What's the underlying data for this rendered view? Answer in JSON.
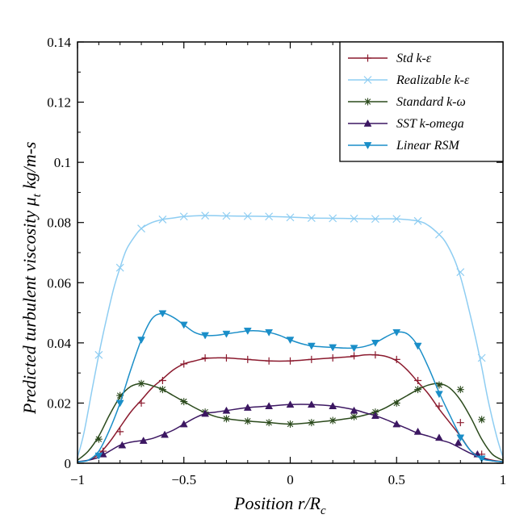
{
  "chart_data": {
    "type": "line",
    "title": "",
    "xlabel": "Position r/R",
    "xlabel_sub": "c",
    "ylabel": "Predicted turbulent viscosity μ",
    "ylabel_sub": "t",
    "ylabel_unit": "kg/m-s",
    "xlim": [
      -1,
      1
    ],
    "ylim": [
      0,
      0.14
    ],
    "x_ticks": [
      -1,
      -0.5,
      0,
      0.5,
      1
    ],
    "x_tick_labels": [
      "−1",
      "−0.5",
      "0",
      "0.5",
      "1"
    ],
    "y_ticks": [
      0,
      0.02,
      0.04,
      0.06,
      0.08,
      0.1,
      0.12,
      0.14
    ],
    "y_tick_labels": [
      "0",
      "0.02",
      "0.04",
      "0.06",
      "0.08",
      "0.1",
      "0.12",
      "0.14"
    ],
    "grid": false,
    "legend_position": "top-right",
    "series": [
      {
        "name": "Std k-ε",
        "color": "#8b1a2e",
        "marker": "plus",
        "line": {
          "x": [
            -1,
            -0.95,
            -0.9,
            -0.85,
            -0.8,
            -0.75,
            -0.7,
            -0.65,
            -0.6,
            -0.55,
            -0.5,
            -0.45,
            -0.4,
            -0.35,
            -0.3,
            -0.2,
            -0.1,
            0,
            0.1,
            0.2,
            0.3,
            0.35,
            0.4,
            0.45,
            0.5,
            0.55,
            0.6,
            0.65,
            0.7,
            0.75,
            0.8,
            0.85,
            0.9,
            0.95,
            1
          ],
          "y": [
            0.0005,
            0.001,
            0.003,
            0.007,
            0.012,
            0.017,
            0.021,
            0.025,
            0.028,
            0.031,
            0.033,
            0.034,
            0.0348,
            0.035,
            0.035,
            0.0345,
            0.034,
            0.034,
            0.0345,
            0.035,
            0.0355,
            0.036,
            0.036,
            0.0355,
            0.034,
            0.031,
            0.027,
            0.023,
            0.018,
            0.0135,
            0.009,
            0.004,
            0.002,
            0.001,
            0.0005
          ]
        },
        "markers": {
          "x": [
            -0.88,
            -0.8,
            -0.7,
            -0.6,
            -0.5,
            -0.4,
            -0.3,
            -0.2,
            -0.1,
            0,
            0.1,
            0.2,
            0.3,
            0.4,
            0.5,
            0.6,
            0.7,
            0.8,
            0.9
          ],
          "y": [
            0.004,
            0.0105,
            0.02,
            0.0275,
            0.033,
            0.035,
            0.035,
            0.0345,
            0.034,
            0.034,
            0.0345,
            0.035,
            0.0357,
            0.036,
            0.0345,
            0.0275,
            0.019,
            0.0135,
            0.003
          ]
        }
      },
      {
        "name": "Realizable k-ε",
        "color": "#8ecdf2",
        "marker": "cross",
        "line": {
          "x": [
            -1,
            -0.97,
            -0.93,
            -0.9,
            -0.87,
            -0.83,
            -0.8,
            -0.77,
            -0.73,
            -0.7,
            -0.65,
            -0.6,
            -0.55,
            -0.5,
            -0.4,
            -0.3,
            -0.2,
            -0.1,
            0,
            0.1,
            0.2,
            0.3,
            0.4,
            0.5,
            0.6,
            0.65,
            0.7,
            0.73,
            0.77,
            0.8,
            0.83,
            0.87,
            0.9,
            0.93,
            0.97,
            1
          ],
          "y": [
            0.002,
            0.01,
            0.025,
            0.036,
            0.046,
            0.058,
            0.065,
            0.071,
            0.0755,
            0.078,
            0.08,
            0.081,
            0.0815,
            0.082,
            0.0823,
            0.0822,
            0.0821,
            0.082,
            0.0818,
            0.0815,
            0.0814,
            0.0813,
            0.0812,
            0.0812,
            0.0805,
            0.079,
            0.076,
            0.0735,
            0.068,
            0.062,
            0.054,
            0.042,
            0.032,
            0.021,
            0.009,
            0.002
          ]
        },
        "markers": {
          "x": [
            -0.9,
            -0.8,
            -0.7,
            -0.6,
            -0.5,
            -0.4,
            -0.3,
            -0.2,
            -0.1,
            0,
            0.1,
            0.2,
            0.3,
            0.4,
            0.5,
            0.6,
            0.7,
            0.8,
            0.9
          ],
          "y": [
            0.036,
            0.065,
            0.078,
            0.081,
            0.082,
            0.0823,
            0.0822,
            0.0821,
            0.082,
            0.0817,
            0.0815,
            0.0814,
            0.0813,
            0.0812,
            0.0812,
            0.0805,
            0.076,
            0.0635,
            0.035
          ]
        }
      },
      {
        "name": "Standard k-ω",
        "color": "#2b4a1c",
        "marker": "star",
        "line": {
          "x": [
            -1,
            -0.95,
            -0.9,
            -0.85,
            -0.8,
            -0.75,
            -0.7,
            -0.65,
            -0.6,
            -0.55,
            -0.5,
            -0.45,
            -0.4,
            -0.35,
            -0.3,
            -0.2,
            -0.1,
            0,
            0.1,
            0.2,
            0.3,
            0.35,
            0.4,
            0.45,
            0.5,
            0.55,
            0.6,
            0.65,
            0.7,
            0.75,
            0.8,
            0.85,
            0.9,
            0.95,
            1
          ],
          "y": [
            0.001,
            0.004,
            0.009,
            0.016,
            0.022,
            0.0255,
            0.0265,
            0.0258,
            0.0245,
            0.0225,
            0.0205,
            0.0185,
            0.0168,
            0.0155,
            0.0148,
            0.014,
            0.0135,
            0.013,
            0.0135,
            0.0142,
            0.0152,
            0.016,
            0.017,
            0.0185,
            0.0205,
            0.0225,
            0.0245,
            0.026,
            0.0265,
            0.025,
            0.021,
            0.015,
            0.008,
            0.003,
            0.001
          ]
        },
        "markers": {
          "x": [
            -0.9,
            -0.8,
            -0.7,
            -0.6,
            -0.5,
            -0.4,
            -0.3,
            -0.2,
            -0.1,
            0,
            0.1,
            0.2,
            0.3,
            0.4,
            0.5,
            0.6,
            0.7,
            0.8,
            0.9
          ],
          "y": [
            0.008,
            0.0225,
            0.0265,
            0.0245,
            0.0205,
            0.017,
            0.0148,
            0.014,
            0.0135,
            0.013,
            0.0135,
            0.0142,
            0.0155,
            0.017,
            0.02,
            0.0245,
            0.026,
            0.0245,
            0.0145
          ]
        }
      },
      {
        "name": "SST k-omega",
        "color": "#3c1762",
        "marker": "triangle-up",
        "line": {
          "x": [
            -1,
            -0.95,
            -0.9,
            -0.85,
            -0.8,
            -0.75,
            -0.7,
            -0.65,
            -0.6,
            -0.55,
            -0.5,
            -0.45,
            -0.4,
            -0.35,
            -0.3,
            -0.2,
            -0.1,
            0,
            0.1,
            0.2,
            0.3,
            0.35,
            0.4,
            0.45,
            0.5,
            0.55,
            0.6,
            0.65,
            0.7,
            0.75,
            0.8,
            0.85,
            0.9,
            0.95,
            1
          ],
          "y": [
            0.0005,
            0.001,
            0.002,
            0.004,
            0.006,
            0.007,
            0.0075,
            0.0082,
            0.0095,
            0.011,
            0.013,
            0.015,
            0.0165,
            0.017,
            0.0175,
            0.0185,
            0.019,
            0.0195,
            0.0195,
            0.019,
            0.0178,
            0.0168,
            0.0158,
            0.0145,
            0.013,
            0.0115,
            0.01,
            0.009,
            0.0078,
            0.0068,
            0.005,
            0.0032,
            0.0018,
            0.0008,
            0.0005
          ]
        },
        "markers": {
          "x": [
            -0.88,
            -0.79,
            -0.69,
            -0.59,
            -0.5,
            -0.4,
            -0.3,
            -0.2,
            -0.1,
            0,
            0.1,
            0.2,
            0.3,
            0.4,
            0.5,
            0.6,
            0.7,
            0.79,
            0.88
          ],
          "y": [
            0.003,
            0.006,
            0.0075,
            0.0095,
            0.013,
            0.0165,
            0.0175,
            0.0185,
            0.019,
            0.0195,
            0.0195,
            0.019,
            0.0175,
            0.0158,
            0.013,
            0.0105,
            0.0085,
            0.0068,
            0.003
          ]
        }
      },
      {
        "name": "Linear RSM",
        "color": "#1a8ec8",
        "marker": "triangle-down",
        "line": {
          "x": [
            -1,
            -0.95,
            -0.9,
            -0.85,
            -0.8,
            -0.75,
            -0.7,
            -0.65,
            -0.6,
            -0.55,
            -0.5,
            -0.45,
            -0.4,
            -0.35,
            -0.3,
            -0.25,
            -0.2,
            -0.15,
            -0.1,
            -0.05,
            0,
            0.05,
            0.1,
            0.15,
            0.2,
            0.25,
            0.3,
            0.35,
            0.4,
            0.45,
            0.5,
            0.55,
            0.6,
            0.65,
            0.7,
            0.75,
            0.8,
            0.85,
            0.9,
            0.95,
            1
          ],
          "y": [
            0.0005,
            0.001,
            0.004,
            0.011,
            0.02,
            0.031,
            0.041,
            0.048,
            0.0498,
            0.0485,
            0.046,
            0.0435,
            0.0425,
            0.0425,
            0.043,
            0.0435,
            0.044,
            0.044,
            0.0435,
            0.0425,
            0.041,
            0.0398,
            0.039,
            0.0387,
            0.0385,
            0.0383,
            0.0383,
            0.0388,
            0.04,
            0.042,
            0.0435,
            0.043,
            0.039,
            0.0318,
            0.0235,
            0.016,
            0.009,
            0.004,
            0.0015,
            0.0008,
            0.0005
          ]
        },
        "markers": {
          "x": [
            -0.9,
            -0.8,
            -0.7,
            -0.6,
            -0.5,
            -0.4,
            -0.3,
            -0.2,
            -0.1,
            0,
            0.1,
            0.2,
            0.3,
            0.4,
            0.5,
            0.6,
            0.7,
            0.8,
            0.9
          ],
          "y": [
            0.0025,
            0.02,
            0.041,
            0.0498,
            0.046,
            0.0425,
            0.043,
            0.044,
            0.0435,
            0.041,
            0.039,
            0.0385,
            0.0383,
            0.04,
            0.0435,
            0.039,
            0.023,
            0.0085,
            0.0015
          ]
        }
      }
    ]
  }
}
